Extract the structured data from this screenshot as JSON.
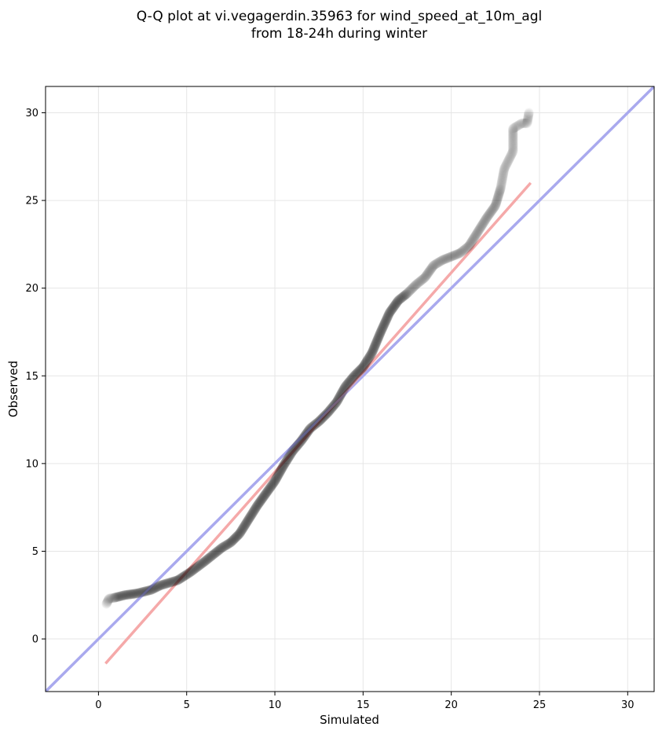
{
  "chart_data": {
    "type": "scatter",
    "title": "Q-Q plot at vi.vegagerdin.35963 for wind_speed_at_10m_agl",
    "subtitle": "from 18-24h during winter",
    "xlabel": "Simulated",
    "ylabel": "Observed",
    "xlim": [
      -3,
      31.5
    ],
    "ylim": [
      -3,
      31.5
    ],
    "xticks": [
      0,
      5,
      10,
      15,
      20,
      25,
      30
    ],
    "yticks": [
      0,
      5,
      10,
      15,
      20,
      25,
      30
    ],
    "xtick_labels": [
      "0",
      "5",
      "10",
      "15",
      "20",
      "25",
      "30"
    ],
    "ytick_labels": [
      "0",
      "5",
      "10",
      "15",
      "20",
      "25",
      "30"
    ],
    "grid": true,
    "legend": "none",
    "series": [
      {
        "kind": "quantile-points",
        "color": "#000000",
        "quantiles_anchor": [
          [
            0.45,
            2.0
          ],
          [
            0.6,
            2.3
          ],
          [
            0.9,
            2.35
          ],
          [
            1.5,
            2.5
          ],
          [
            2.2,
            2.6
          ],
          [
            3.0,
            2.8
          ],
          [
            3.5,
            3.05
          ],
          [
            4.5,
            3.35
          ],
          [
            5.2,
            3.8
          ],
          [
            6.0,
            4.4
          ],
          [
            7.0,
            5.2
          ],
          [
            7.5,
            5.5
          ],
          [
            8.0,
            6.0
          ],
          [
            8.5,
            6.8
          ],
          [
            9.0,
            7.6
          ],
          [
            9.5,
            8.3
          ],
          [
            10.0,
            9.0
          ],
          [
            10.5,
            9.9
          ],
          [
            11.0,
            10.7
          ],
          [
            11.5,
            11.3
          ],
          [
            12.0,
            12.0
          ],
          [
            12.5,
            12.4
          ],
          [
            13.0,
            12.9
          ],
          [
            13.5,
            13.5
          ],
          [
            14.0,
            14.4
          ],
          [
            14.5,
            15.0
          ],
          [
            15.0,
            15.5
          ],
          [
            15.5,
            16.3
          ],
          [
            16.0,
            17.5
          ],
          [
            16.5,
            18.6
          ],
          [
            17.0,
            19.3
          ],
          [
            17.5,
            19.7
          ],
          [
            18.0,
            20.2
          ],
          [
            18.5,
            20.6
          ],
          [
            19.0,
            21.3
          ],
          [
            19.5,
            21.6
          ],
          [
            20.0,
            21.8
          ],
          [
            20.5,
            22.0
          ],
          [
            21.0,
            22.4
          ],
          [
            21.5,
            23.2
          ],
          [
            22.0,
            24.0
          ],
          [
            22.5,
            24.7
          ],
          [
            22.8,
            25.7
          ],
          [
            23.0,
            26.8
          ],
          [
            23.5,
            27.8
          ],
          [
            23.5,
            28.6
          ],
          [
            23.5,
            29.1
          ],
          [
            24.0,
            29.4
          ],
          [
            24.3,
            29.4
          ],
          [
            24.4,
            30.0
          ]
        ]
      },
      {
        "kind": "identity-line",
        "color": "#aaaaee",
        "points": [
          [
            -3,
            -3
          ],
          [
            31.5,
            31.5
          ]
        ]
      },
      {
        "kind": "regression-line",
        "color": "#f5a9a9",
        "points": [
          [
            0.4,
            -1.4
          ],
          [
            24.5,
            26.0
          ]
        ]
      }
    ]
  }
}
